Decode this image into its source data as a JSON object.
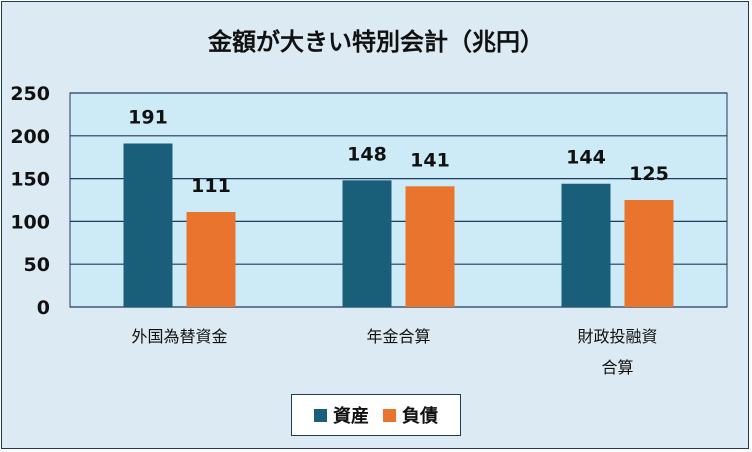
{
  "chart_data": {
    "type": "bar",
    "title": "金額が大きい特別会計（兆円）",
    "categories": [
      [
        "外国為替資金"
      ],
      [
        "年金合算"
      ],
      [
        "財政投融資",
        "合算"
      ]
    ],
    "series": [
      {
        "name": "資産",
        "values": [
          191,
          148,
          144
        ],
        "color": "#1a5f7a"
      },
      {
        "name": "負債",
        "values": [
          111,
          141,
          125
        ],
        "color": "#e8742e"
      }
    ],
    "ylim": [
      0,
      250
    ],
    "yticks": [
      0,
      50,
      100,
      150,
      200,
      250
    ],
    "grid": true,
    "legend": "bottom",
    "plot_background": "#cdeaf7"
  }
}
